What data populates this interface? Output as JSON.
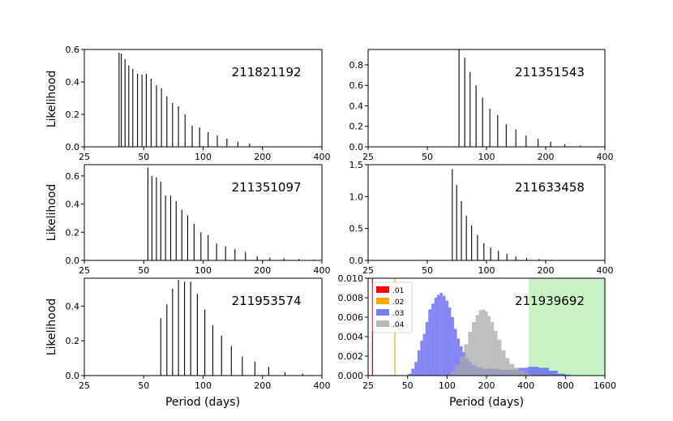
{
  "figure": {
    "y_axis_label": "Likelihood",
    "x_axis_label": "Period (days)"
  },
  "chart_data": [
    {
      "type": "bar",
      "id_label": "211821192",
      "xscale": "log",
      "xlim": [
        25,
        400
      ],
      "ylim": [
        0,
        0.6
      ],
      "xticks": [
        "25",
        "50",
        "100",
        "200",
        "400"
      ],
      "xtick_values": [
        25,
        50,
        100,
        200,
        400
      ],
      "yticks": [
        "0.0",
        "0.2",
        "0.4",
        "0.6"
      ],
      "ytick_values": [
        0,
        0.2,
        0.4,
        0.6
      ],
      "ylabel": "Likelihood",
      "xlabel": "",
      "x": [
        37.5,
        38.5,
        40.2,
        42,
        44,
        46.5,
        49,
        51.5,
        54.5,
        58,
        61.5,
        65.5,
        70,
        75,
        81,
        88,
        96,
        106,
        118,
        132,
        150,
        172
      ],
      "values": [
        0.58,
        0.575,
        0.54,
        0.5,
        0.48,
        0.45,
        0.445,
        0.45,
        0.42,
        0.38,
        0.36,
        0.31,
        0.27,
        0.25,
        0.2,
        0.13,
        0.12,
        0.09,
        0.07,
        0.05,
        0.03,
        0.02
      ]
    },
    {
      "type": "bar",
      "id_label": "211351543",
      "xscale": "log",
      "xlim": [
        25,
        400
      ],
      "ylim": [
        0,
        0.95
      ],
      "xticks": [
        "25",
        "50",
        "100",
        "200",
        "400"
      ],
      "xtick_values": [
        25,
        50,
        100,
        200,
        400
      ],
      "yticks": [
        "0.0",
        "0.2",
        "0.4",
        "0.6",
        "0.8"
      ],
      "ytick_values": [
        0,
        0.2,
        0.4,
        0.6,
        0.8
      ],
      "ylabel": "",
      "xlabel": "",
      "x": [
        72.5,
        77.5,
        82.5,
        88.5,
        95.5,
        104,
        114,
        126,
        141,
        159,
        183,
        212,
        250,
        300,
        360
      ],
      "values": [
        0.95,
        0.87,
        0.73,
        0.6,
        0.48,
        0.37,
        0.31,
        0.22,
        0.17,
        0.11,
        0.08,
        0.05,
        0.025,
        0.01,
        0.005
      ]
    },
    {
      "type": "bar",
      "id_label": "211351097",
      "xscale": "log",
      "xlim": [
        25,
        400
      ],
      "ylim": [
        0,
        0.68
      ],
      "xticks": [
        "25",
        "50",
        "100",
        "200",
        "400"
      ],
      "xtick_values": [
        25,
        50,
        100,
        200,
        400
      ],
      "yticks": [
        "0.0",
        "0.2",
        "0.4",
        "0.6"
      ],
      "ytick_values": [
        0,
        0.2,
        0.4,
        0.6
      ],
      "ylabel": "Likelihood",
      "xlabel": "",
      "x": [
        52.5,
        55,
        58,
        61,
        64.5,
        68.5,
        73,
        78,
        83.5,
        90,
        97.5,
        106,
        117,
        130,
        145,
        164,
        188,
        218,
        257,
        305,
        365
      ],
      "values": [
        0.66,
        0.6,
        0.59,
        0.56,
        0.46,
        0.46,
        0.42,
        0.36,
        0.32,
        0.26,
        0.2,
        0.18,
        0.12,
        0.1,
        0.08,
        0.06,
        0.03,
        0.02,
        0.015,
        0.01,
        0.005
      ]
    },
    {
      "type": "bar",
      "id_label": "211633458",
      "xscale": "log",
      "xlim": [
        25,
        400
      ],
      "ylim": [
        0,
        1.5
      ],
      "xticks": [
        "25",
        "50",
        "100",
        "200",
        "400"
      ],
      "xtick_values": [
        25,
        50,
        100,
        200,
        400
      ],
      "yticks": [
        "0.0",
        "0.5",
        "1.0",
        "1.5"
      ],
      "ytick_values": [
        0,
        0.5,
        1.0,
        1.5
      ],
      "ylabel": "",
      "xlabel": "",
      "x": [
        67,
        70.5,
        74.5,
        79,
        84,
        90,
        97,
        105,
        115,
        127,
        141,
        160,
        185,
        215,
        255,
        305
      ],
      "values": [
        1.43,
        1.18,
        0.93,
        0.7,
        0.55,
        0.4,
        0.27,
        0.2,
        0.15,
        0.1,
        0.06,
        0.04,
        0.02,
        0.01,
        0.005,
        0.003
      ]
    },
    {
      "type": "bar",
      "id_label": "211953574",
      "xscale": "log",
      "xlim": [
        25,
        400
      ],
      "ylim": [
        0,
        0.56
      ],
      "xticks": [
        "25",
        "50",
        "100",
        "200",
        "400"
      ],
      "xtick_values": [
        25,
        50,
        100,
        200,
        400
      ],
      "yticks": [
        "0.0",
        "0.2",
        "0.4"
      ],
      "ytick_values": [
        0,
        0.2,
        0.4
      ],
      "ylabel": "Likelihood",
      "xlabel": "Period (days)",
      "x": [
        61,
        65.5,
        70,
        75,
        80.5,
        86.5,
        93.5,
        102,
        112,
        124,
        139,
        158,
        183,
        215,
        260,
        320
      ],
      "values": [
        0.33,
        0.41,
        0.5,
        0.55,
        0.54,
        0.54,
        0.47,
        0.38,
        0.29,
        0.23,
        0.17,
        0.11,
        0.08,
        0.05,
        0.02,
        0.01
      ]
    },
    {
      "type": "histogram",
      "id_label": "211939692",
      "xscale": "log",
      "xlim": [
        25,
        1600
      ],
      "ylim": [
        0,
        0.01
      ],
      "xticks": [
        "25",
        "50",
        "100",
        "200",
        "400",
        "800",
        "1600"
      ],
      "xtick_values": [
        25,
        50,
        100,
        200,
        400,
        800,
        1600
      ],
      "yticks": [
        "0.000",
        "0.002",
        "0.004",
        "0.006",
        "0.008",
        "0.010"
      ],
      "ytick_values": [
        0,
        0.002,
        0.004,
        0.006,
        0.008,
        0.01
      ],
      "ylabel": "",
      "xlabel": "Period (days)",
      "shaded_range": {
        "x0": 420,
        "x1": 1600,
        "color": "#c6f2c6"
      },
      "vlines": [
        {
          "name": ".01",
          "x": 27,
          "color": "#e00000"
        },
        {
          "name": ".02",
          "x": 40,
          "color": "#ffa500"
        }
      ],
      "legend": [
        {
          "name": ".01",
          "color": "#ff0000"
        },
        {
          "name": ".02",
          "color": "#ffa500"
        },
        {
          "name": ".03",
          "color": "#7b7bf5"
        },
        {
          "name": ".04",
          "color": "#b8b8b8"
        }
      ],
      "series": [
        {
          "name": ".03",
          "color": "#5c5cf0",
          "x": [
            52,
            55,
            58,
            61,
            64,
            67,
            70,
            74,
            78,
            82,
            86,
            90,
            95,
            100,
            105,
            110,
            116,
            122,
            128,
            135,
            142,
            150,
            160,
            170,
            180,
            200,
            230,
            270,
            320,
            380,
            450,
            550,
            650,
            750,
            850
          ],
          "values": [
            0.0002,
            0.0007,
            0.0014,
            0.0026,
            0.0036,
            0.0043,
            0.0055,
            0.0068,
            0.0074,
            0.008,
            0.0083,
            0.0085,
            0.0082,
            0.0077,
            0.007,
            0.006,
            0.0048,
            0.0038,
            0.003,
            0.0024,
            0.0018,
            0.0014,
            0.0011,
            0.0009,
            0.0008,
            0.0007,
            0.0007,
            0.0006,
            0.0006,
            0.0008,
            0.0009,
            0.0008,
            0.0005,
            0.0002,
            0.0001
          ]
        },
        {
          "name": ".04",
          "color": "#a8a8a8",
          "x": [
            110,
            120,
            130,
            140,
            150,
            160,
            170,
            180,
            190,
            200,
            210,
            220,
            235,
            250,
            270,
            290,
            310,
            340,
            370,
            400,
            450
          ],
          "values": [
            0.0004,
            0.0011,
            0.002,
            0.0032,
            0.0045,
            0.0055,
            0.0062,
            0.0067,
            0.0068,
            0.0066,
            0.0061,
            0.0055,
            0.0046,
            0.0037,
            0.0026,
            0.0018,
            0.0012,
            0.0008,
            0.0005,
            0.0002,
            0.0001
          ]
        }
      ]
    }
  ]
}
